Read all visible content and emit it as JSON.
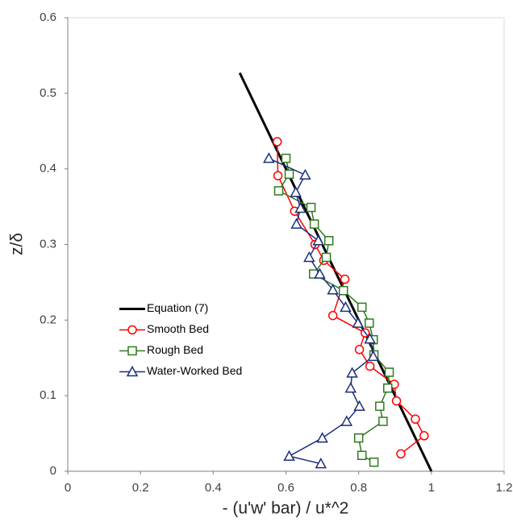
{
  "chart_data": {
    "type": "line",
    "x_label": "- (u'w' bar) / u*^2",
    "y_label": "z/δ",
    "xlim": [
      0,
      1.2
    ],
    "xticks": [
      0,
      0.2,
      0.4,
      0.6,
      0.8,
      1,
      1.2
    ],
    "ylim": [
      0,
      0.6
    ],
    "yticks": [
      0,
      0.1,
      0.2,
      0.3,
      0.4,
      0.5,
      0.6
    ],
    "grid": false,
    "legend": "center left",
    "series": [
      {
        "name": "Equation (7)",
        "color": "#000000",
        "width": 3,
        "x": [
          0.473,
          1
        ],
        "y": [
          0.527,
          0
        ]
      },
      {
        "name": "Smooth Bed",
        "color": "#ff0000",
        "width": 1.5,
        "marker": "circle",
        "x": [
          0.576,
          0.578,
          0.624,
          0.68,
          0.704,
          0.762,
          0.729,
          0.818,
          0.802,
          0.831,
          0.898,
          0.904,
          0.956,
          0.98,
          0.916
        ],
        "y": [
          0.436,
          0.391,
          0.344,
          0.3,
          0.279,
          0.254,
          0.206,
          0.183,
          0.161,
          0.139,
          0.115,
          0.093,
          0.069,
          0.047,
          0.023
        ]
      },
      {
        "name": "Rough Bed",
        "color": "#2e7a1e",
        "width": 1.5,
        "marker": "square",
        "x": [
          0.6,
          0.609,
          0.58,
          0.669,
          0.678,
          0.718,
          0.711,
          0.676,
          0.758,
          0.809,
          0.829,
          0.84,
          0.842,
          0.884,
          0.88,
          0.858,
          0.867,
          0.8,
          0.809,
          0.842
        ],
        "y": [
          0.414,
          0.393,
          0.371,
          0.349,
          0.327,
          0.305,
          0.283,
          0.261,
          0.239,
          0.217,
          0.196,
          0.174,
          0.154,
          0.131,
          0.11,
          0.086,
          0.066,
          0.044,
          0.021,
          0.012
        ]
      },
      {
        "name": "Water-Worked Bed",
        "color": "#1c2f7c",
        "width": 1.5,
        "marker": "triangle",
        "x": [
          0.553,
          0.653,
          0.627,
          0.64,
          0.629,
          0.689,
          0.664,
          0.693,
          0.729,
          0.764,
          0.798,
          0.831,
          0.84,
          0.782,
          0.778,
          0.802,
          0.767,
          0.7,
          0.609,
          0.696
        ],
        "y": [
          0.414,
          0.392,
          0.369,
          0.348,
          0.327,
          0.305,
          0.283,
          0.261,
          0.24,
          0.217,
          0.196,
          0.175,
          0.152,
          0.13,
          0.11,
          0.086,
          0.066,
          0.044,
          0.02,
          0.01
        ]
      }
    ]
  }
}
